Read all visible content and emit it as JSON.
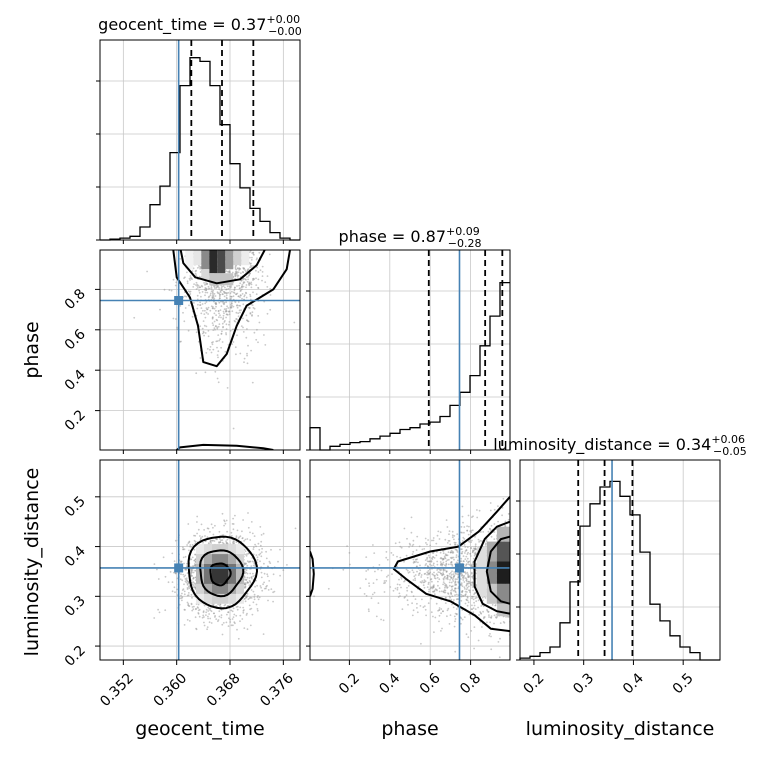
{
  "chart_data": {
    "type": "corner",
    "parameters": [
      "geocent_time",
      "phase",
      "luminosity_distance"
    ],
    "titles": [
      {
        "param": "geocent_time",
        "prefix": "geocent_time = ",
        "value": "0.37",
        "plus": "+0.00",
        "minus": "−0.00"
      },
      {
        "param": "phase",
        "prefix": "phase = ",
        "value": "0.87",
        "plus": "+0.09",
        "minus": "−0.28"
      },
      {
        "param": "luminosity_distance",
        "prefix": "luminosity_distance = ",
        "value": "0.34",
        "plus": "+0.06",
        "minus": "−0.05"
      }
    ],
    "ranges": {
      "geocent_time": [
        0.3485,
        0.3785
      ],
      "phase": [
        0.005,
        0.995
      ],
      "luminosity_distance": [
        0.172,
        0.574
      ]
    },
    "ticks": {
      "geocent_time": [
        "0.352",
        "0.360",
        "0.368",
        "0.376"
      ],
      "phase": [
        "0.2",
        "0.4",
        "0.6",
        "0.8"
      ],
      "luminosity_distance": [
        "0.2",
        "0.3",
        "0.4",
        "0.5"
      ]
    },
    "truths": {
      "geocent_time": 0.3603,
      "phase": 0.745,
      "luminosity_distance": 0.357
    },
    "quantiles": {
      "geocent_time": [
        0.3622,
        0.3668,
        0.3715
      ],
      "phase": [
        0.593,
        0.872,
        0.957
      ],
      "luminosity_distance": [
        0.289,
        0.342,
        0.398
      ]
    },
    "histograms": {
      "geocent_time": {
        "bins": [
          0.3485,
          0.3785
        ],
        "counts": [
          0.0,
          0.005,
          0.01,
          0.02,
          0.07,
          0.19,
          0.29,
          0.47,
          0.83,
          0.98,
          0.96,
          0.83,
          0.62,
          0.41,
          0.28,
          0.17,
          0.1,
          0.04,
          0.01,
          0.0
        ]
      },
      "phase": {
        "bins": [
          0.005,
          0.995
        ],
        "counts": [
          0.12,
          0.0,
          0.02,
          0.03,
          0.04,
          0.045,
          0.06,
          0.075,
          0.09,
          0.11,
          0.12,
          0.14,
          0.15,
          0.18,
          0.24,
          0.31,
          0.4,
          0.56,
          0.72,
          0.9
        ]
      },
      "luminosity_distance": {
        "bins": [
          0.172,
          0.574
        ],
        "counts": [
          0.01,
          0.02,
          0.04,
          0.07,
          0.2,
          0.42,
          0.72,
          0.84,
          0.93,
          0.96,
          0.88,
          0.78,
          0.58,
          0.3,
          0.21,
          0.13,
          0.07,
          0.04,
          0.0,
          0.0
        ]
      }
    },
    "grid": true
  }
}
